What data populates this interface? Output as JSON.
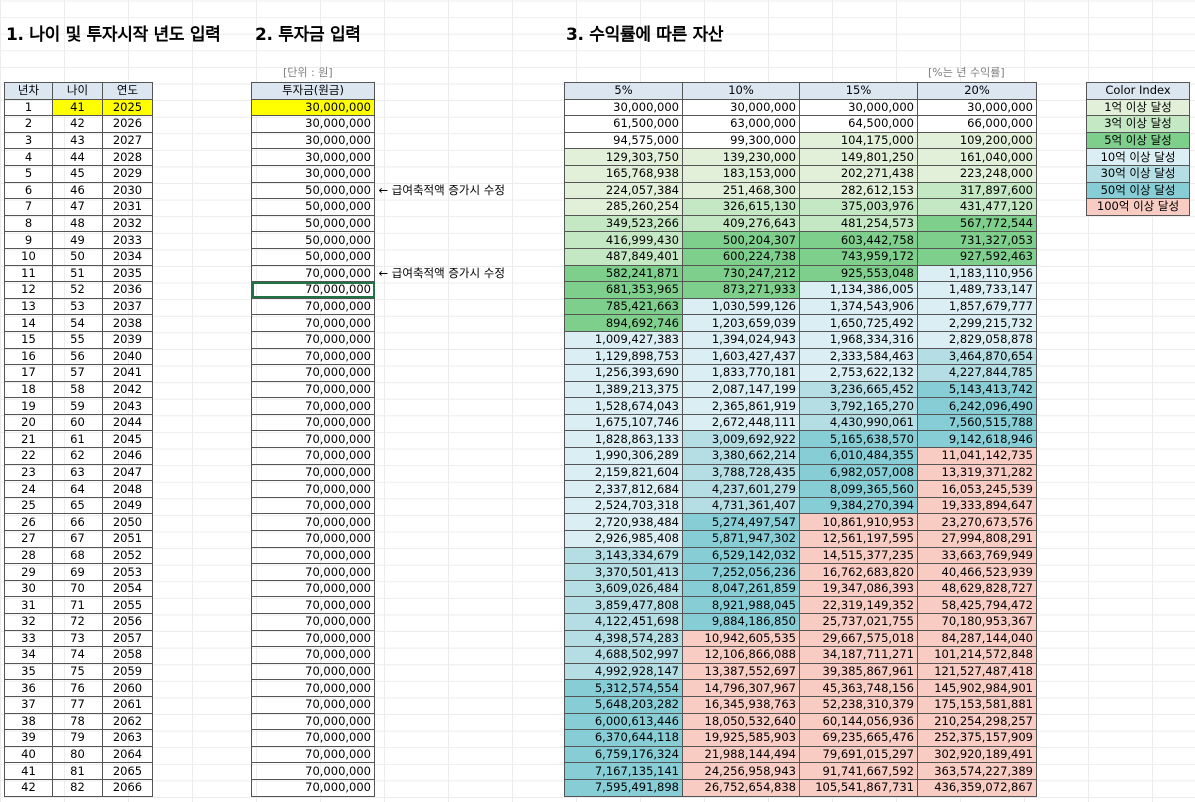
{
  "titles": {
    "section1": "1. 나이 및 투자시작 년도 입력",
    "section2": "2. 투자금 입력",
    "section3": "3. 수익률에 따른 자산"
  },
  "notes": {
    "unit": "[단위 : 원]",
    "rate": "[%는 년 수익률]"
  },
  "table1": {
    "headers": [
      "년차",
      "나이",
      "연도"
    ],
    "rows": [
      [
        "1",
        "41",
        "2025"
      ],
      [
        "2",
        "42",
        "2026"
      ],
      [
        "3",
        "43",
        "2027"
      ],
      [
        "4",
        "44",
        "2028"
      ],
      [
        "5",
        "45",
        "2029"
      ],
      [
        "6",
        "46",
        "2030"
      ],
      [
        "7",
        "47",
        "2031"
      ],
      [
        "8",
        "48",
        "2032"
      ],
      [
        "9",
        "49",
        "2033"
      ],
      [
        "10",
        "50",
        "2034"
      ],
      [
        "11",
        "51",
        "2035"
      ],
      [
        "12",
        "52",
        "2036"
      ],
      [
        "13",
        "53",
        "2037"
      ],
      [
        "14",
        "54",
        "2038"
      ],
      [
        "15",
        "55",
        "2039"
      ],
      [
        "16",
        "56",
        "2040"
      ],
      [
        "17",
        "57",
        "2041"
      ],
      [
        "18",
        "58",
        "2042"
      ],
      [
        "19",
        "59",
        "2043"
      ],
      [
        "20",
        "60",
        "2044"
      ],
      [
        "21",
        "61",
        "2045"
      ],
      [
        "22",
        "62",
        "2046"
      ],
      [
        "23",
        "63",
        "2047"
      ],
      [
        "24",
        "64",
        "2048"
      ],
      [
        "25",
        "65",
        "2049"
      ],
      [
        "26",
        "66",
        "2050"
      ],
      [
        "27",
        "67",
        "2051"
      ],
      [
        "28",
        "68",
        "2052"
      ],
      [
        "29",
        "69",
        "2053"
      ],
      [
        "30",
        "70",
        "2054"
      ],
      [
        "31",
        "71",
        "2055"
      ],
      [
        "32",
        "72",
        "2056"
      ],
      [
        "33",
        "73",
        "2057"
      ],
      [
        "34",
        "74",
        "2058"
      ],
      [
        "35",
        "75",
        "2059"
      ],
      [
        "36",
        "76",
        "2060"
      ],
      [
        "37",
        "77",
        "2061"
      ],
      [
        "38",
        "78",
        "2062"
      ],
      [
        "39",
        "79",
        "2063"
      ],
      [
        "40",
        "80",
        "2064"
      ],
      [
        "41",
        "81",
        "2065"
      ],
      [
        "42",
        "82",
        "2066"
      ]
    ]
  },
  "table2": {
    "header": "투자금(원금)",
    "values": [
      "30,000,000",
      "30,000,000",
      "30,000,000",
      "30,000,000",
      "30,000,000",
      "50,000,000",
      "50,000,000",
      "50,000,000",
      "50,000,000",
      "50,000,000",
      "70,000,000",
      "70,000,000",
      "70,000,000",
      "70,000,000",
      "70,000,000",
      "70,000,000",
      "70,000,000",
      "70,000,000",
      "70,000,000",
      "70,000,000",
      "70,000,000",
      "70,000,000",
      "70,000,000",
      "70,000,000",
      "70,000,000",
      "70,000,000",
      "70,000,000",
      "70,000,000",
      "70,000,000",
      "70,000,000",
      "70,000,000",
      "70,000,000",
      "70,000,000",
      "70,000,000",
      "70,000,000",
      "70,000,000",
      "70,000,000",
      "70,000,000",
      "70,000,000",
      "70,000,000",
      "70,000,000",
      "70,000,000"
    ],
    "side_notes": [
      {
        "row": 6,
        "text": "← 급여축적액 증가시 수정"
      },
      {
        "row": 11,
        "text": "← 급여축적액 증가시 수정"
      }
    ]
  },
  "table3": {
    "headers": [
      "5%",
      "10%",
      "15%",
      "20%"
    ],
    "rows": [
      [
        "30,000,000",
        "30,000,000",
        "30,000,000",
        "30,000,000"
      ],
      [
        "61,500,000",
        "63,000,000",
        "64,500,000",
        "66,000,000"
      ],
      [
        "94,575,000",
        "99,300,000",
        "104,175,000",
        "109,200,000"
      ],
      [
        "129,303,750",
        "139,230,000",
        "149,801,250",
        "161,040,000"
      ],
      [
        "165,768,938",
        "183,153,000",
        "202,271,438",
        "223,248,000"
      ],
      [
        "224,057,384",
        "251,468,300",
        "282,612,153",
        "317,897,600"
      ],
      [
        "285,260,254",
        "326,615,130",
        "375,003,976",
        "431,477,120"
      ],
      [
        "349,523,266",
        "409,276,643",
        "481,254,573",
        "567,772,544"
      ],
      [
        "416,999,430",
        "500,204,307",
        "603,442,758",
        "731,327,053"
      ],
      [
        "487,849,401",
        "600,224,738",
        "743,959,172",
        "927,592,463"
      ],
      [
        "582,241,871",
        "730,247,212",
        "925,553,048",
        "1,183,110,956"
      ],
      [
        "681,353,965",
        "873,271,933",
        "1,134,386,005",
        "1,489,733,147"
      ],
      [
        "785,421,663",
        "1,030,599,126",
        "1,374,543,906",
        "1,857,679,777"
      ],
      [
        "894,692,746",
        "1,203,659,039",
        "1,650,725,492",
        "2,299,215,732"
      ],
      [
        "1,009,427,383",
        "1,394,024,943",
        "1,968,334,316",
        "2,829,058,878"
      ],
      [
        "1,129,898,753",
        "1,603,427,437",
        "2,333,584,463",
        "3,464,870,654"
      ],
      [
        "1,256,393,690",
        "1,833,770,181",
        "2,753,622,132",
        "4,227,844,785"
      ],
      [
        "1,389,213,375",
        "2,087,147,199",
        "3,236,665,452",
        "5,143,413,742"
      ],
      [
        "1,528,674,043",
        "2,365,861,919",
        "3,792,165,270",
        "6,242,096,490"
      ],
      [
        "1,675,107,746",
        "2,672,448,111",
        "4,430,990,061",
        "7,560,515,788"
      ],
      [
        "1,828,863,133",
        "3,009,692,922",
        "5,165,638,570",
        "9,142,618,946"
      ],
      [
        "1,990,306,289",
        "3,380,662,214",
        "6,010,484,355",
        "11,041,142,735"
      ],
      [
        "2,159,821,604",
        "3,788,728,435",
        "6,982,057,008",
        "13,319,371,282"
      ],
      [
        "2,337,812,684",
        "4,237,601,279",
        "8,099,365,560",
        "16,053,245,539"
      ],
      [
        "2,524,703,318",
        "4,731,361,407",
        "9,384,270,394",
        "19,333,894,647"
      ],
      [
        "2,720,938,484",
        "5,274,497,547",
        "10,861,910,953",
        "23,270,673,576"
      ],
      [
        "2,926,985,408",
        "5,871,947,302",
        "12,561,197,595",
        "27,994,808,291"
      ],
      [
        "3,143,334,679",
        "6,529,142,032",
        "14,515,377,235",
        "33,663,769,949"
      ],
      [
        "3,370,501,413",
        "7,252,056,236",
        "16,762,683,820",
        "40,466,523,939"
      ],
      [
        "3,609,026,484",
        "8,047,261,859",
        "19,347,086,393",
        "48,629,828,727"
      ],
      [
        "3,859,477,808",
        "8,921,988,045",
        "22,319,149,352",
        "58,425,794,472"
      ],
      [
        "4,122,451,698",
        "9,884,186,850",
        "25,737,021,755",
        "70,180,953,367"
      ],
      [
        "4,398,574,283",
        "10,942,605,535",
        "29,667,575,018",
        "84,287,144,040"
      ],
      [
        "4,688,502,997",
        "12,106,866,088",
        "34,187,711,271",
        "101,214,572,848"
      ],
      [
        "4,992,928,147",
        "13,387,552,697",
        "39,385,867,961",
        "121,527,487,418"
      ],
      [
        "5,312,574,554",
        "14,796,307,967",
        "45,363,748,156",
        "145,902,984,901"
      ],
      [
        "5,648,203,282",
        "16,345,938,763",
        "52,238,310,379",
        "175,153,581,881"
      ],
      [
        "6,000,613,446",
        "18,050,532,640",
        "60,144,056,936",
        "210,254,298,257"
      ],
      [
        "6,370,644,118",
        "19,925,585,903",
        "69,235,665,476",
        "252,375,157,909"
      ],
      [
        "6,759,176,324",
        "21,988,144,494",
        "79,691,015,297",
        "302,920,189,491"
      ],
      [
        "7,167,135,141",
        "24,256,958,943",
        "91,741,667,592",
        "363,574,227,389"
      ],
      [
        "7,595,491,898",
        "26,752,654,838",
        "105,541,867,731",
        "436,359,072,867"
      ]
    ]
  },
  "legend": {
    "header": "Color Index",
    "items": [
      {
        "label": "1억 이상 달성",
        "color": "#e2f0d9"
      },
      {
        "label": "3억 이상 달성",
        "color": "#c4e7c4"
      },
      {
        "label": "5억 이상 달성",
        "color": "#7fcf8c"
      },
      {
        "label": "10억 이상 달성",
        "color": "#daeef3"
      },
      {
        "label": "30억 이상 달성",
        "color": "#b4dde4"
      },
      {
        "label": "50억 이상 달성",
        "color": "#86cdd6"
      },
      {
        "label": "100억 이상 달성",
        "color": "#f8cbc3"
      }
    ]
  },
  "colors": {
    "highlight": "#ffff00",
    "header_bg": "#dce6f1",
    "selection": "#217346"
  }
}
